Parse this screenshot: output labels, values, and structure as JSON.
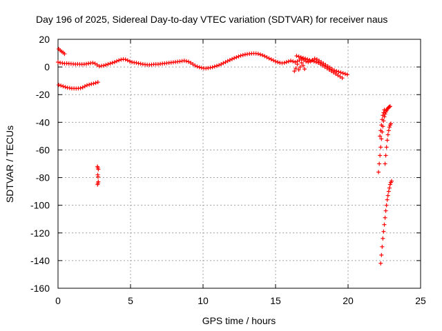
{
  "chart_data": {
    "type": "scatter",
    "title": "Day 196 of 2025, Sidereal Day-to-day VTEC variation (SDTVAR) for receiver naus",
    "xlabel": "GPS time / hours",
    "ylabel": "SDTVAR / TECUs",
    "xlim": [
      0,
      25
    ],
    "ylim": [
      -160,
      20
    ],
    "xticks": [
      0,
      5,
      10,
      15,
      20,
      25
    ],
    "yticks": [
      -160,
      -140,
      -120,
      -100,
      -80,
      -60,
      -40,
      -20,
      0,
      20
    ],
    "grid": true,
    "marker": "plus",
    "color": "#ff0000",
    "series": [
      {
        "x": [
          0.0,
          0.15,
          0.3,
          0.45,
          0.6,
          0.75,
          0.9,
          1.05,
          1.2,
          1.35,
          1.5,
          1.65,
          1.8,
          1.95,
          2.1,
          2.25,
          2.4,
          2.55,
          2.7,
          2.85,
          3.0,
          3.15,
          3.3,
          3.45,
          3.6,
          3.75,
          3.9,
          4.05,
          4.2,
          4.35,
          4.5,
          4.65,
          4.8,
          4.95,
          5.1,
          5.25,
          5.4,
          5.55,
          5.7,
          5.85,
          6.0,
          6.15,
          6.3,
          6.45,
          6.6,
          6.75,
          6.9,
          7.05,
          7.2,
          7.35,
          7.5,
          7.65,
          7.8,
          7.95,
          8.1,
          8.25,
          8.4,
          8.55,
          8.7,
          8.85,
          9.0,
          9.15,
          9.3,
          9.45,
          9.6,
          9.75,
          9.9,
          10.05,
          10.2,
          10.35,
          10.5,
          10.65,
          10.8,
          10.95,
          11.1,
          11.25,
          11.4,
          11.55,
          11.7,
          11.85,
          12.0,
          12.15,
          12.3,
          12.45,
          12.6,
          12.75,
          12.9,
          13.05,
          13.2,
          13.35,
          13.5,
          13.65,
          13.8,
          13.95,
          14.1,
          14.25,
          14.4,
          14.55,
          14.7,
          14.85,
          15.0,
          15.15,
          15.3,
          15.45,
          15.6,
          15.75,
          15.9,
          16.05,
          16.2,
          16.35,
          16.5,
          16.65,
          16.8,
          16.95,
          17.1,
          17.25,
          17.4,
          17.55,
          17.7,
          17.85,
          18.0,
          18.15,
          18.3,
          18.45,
          18.6,
          18.75,
          18.9,
          19.05,
          19.2,
          19.35,
          19.5,
          19.65,
          19.8,
          19.95,
          0.05,
          0.15,
          0.25,
          0.35,
          0.45,
          0.05,
          0.2,
          0.35,
          0.5,
          0.65,
          0.8,
          0.95,
          1.1,
          1.25,
          1.4,
          1.55,
          1.7,
          1.85,
          2.0,
          2.15,
          2.3,
          2.45,
          2.6,
          2.75,
          2.72,
          2.75,
          2.78,
          2.74,
          2.76,
          2.78,
          2.75,
          2.73,
          16.3,
          16.4,
          16.5,
          16.6,
          16.7,
          16.8,
          16.9,
          17.0,
          16.45,
          16.6,
          16.75,
          16.9,
          17.05,
          17.2,
          17.35,
          17.5,
          17.65,
          17.8,
          17.95,
          18.1,
          18.25,
          18.4,
          18.55,
          18.7,
          18.85,
          19.0,
          19.15,
          19.3,
          19.45,
          19.6,
          22.1,
          22.15,
          22.2,
          22.25,
          22.3,
          22.35,
          22.4,
          22.45,
          22.5,
          22.55,
          22.6,
          22.65,
          22.7,
          22.75,
          22.8,
          22.85,
          22.9,
          22.2,
          22.25,
          22.3,
          22.35,
          22.4,
          22.45,
          22.5,
          22.55,
          22.6,
          22.65,
          22.7,
          22.75,
          22.8,
          22.85,
          22.9,
          22.95,
          22.25,
          22.3,
          22.35,
          22.4,
          22.45,
          22.5,
          22.55,
          22.6,
          22.65,
          22.7,
          22.75,
          22.8,
          22.85,
          22.9,
          22.95,
          23.0
        ],
        "y": [
          3.5,
          3.0,
          2.8,
          2.5,
          2.6,
          2.4,
          2.3,
          2.2,
          2.0,
          2.1,
          2.0,
          1.9,
          2.0,
          2.2,
          2.5,
          2.8,
          3.0,
          2.5,
          1.5,
          0.5,
          0.8,
          1.0,
          1.5,
          2.0,
          2.5,
          3.0,
          3.5,
          4.2,
          4.8,
          5.3,
          5.6,
          5.4,
          4.8,
          4.0,
          3.5,
          3.2,
          3.0,
          2.6,
          2.3,
          2.0,
          1.8,
          1.6,
          1.5,
          1.7,
          1.9,
          2.0,
          2.0,
          2.2,
          2.4,
          2.6,
          2.8,
          3.0,
          3.2,
          3.4,
          3.6,
          3.8,
          4.0,
          4.3,
          4.5,
          4.2,
          3.8,
          3.0,
          2.0,
          1.0,
          0.3,
          -0.2,
          -0.6,
          -0.9,
          -1.0,
          -0.8,
          -0.5,
          -0.2,
          0.3,
          0.8,
          1.3,
          2.0,
          2.8,
          3.5,
          4.3,
          5.0,
          5.7,
          6.4,
          7.0,
          7.6,
          8.2,
          8.6,
          9.0,
          9.3,
          9.5,
          9.7,
          9.8,
          9.7,
          9.5,
          9.0,
          8.5,
          7.8,
          7.0,
          6.2,
          5.5,
          4.8,
          4.0,
          3.5,
          3.0,
          2.8,
          3.0,
          3.5,
          4.0,
          4.5,
          4.0,
          3.5,
          4.0,
          5.0,
          6.0,
          5.0,
          4.0,
          3.5,
          4.0,
          5.0,
          6.0,
          5.5,
          4.5,
          3.5,
          2.5,
          1.5,
          0.5,
          -0.5,
          -1.5,
          -2.5,
          -3.0,
          -3.5,
          -4.0,
          -4.5,
          -5.0,
          -5.5,
          13.0,
          12.0,
          11.2,
          10.4,
          9.5,
          -13.0,
          -13.5,
          -14.0,
          -14.5,
          -15.0,
          -15.2,
          -15.5,
          -15.5,
          -15.6,
          -15.5,
          -15.3,
          -14.8,
          -14.0,
          -13.2,
          -12.8,
          -12.3,
          -12.0,
          -11.5,
          -11.0,
          -72.0,
          -73.0,
          -74.0,
          -78.0,
          -79.5,
          -83.0,
          -84.0,
          -85.0,
          -3.0,
          -1.0,
          2.0,
          -2.0,
          0.0,
          3.0,
          1.0,
          -1.5,
          8.0,
          7.5,
          7.0,
          6.5,
          6.0,
          5.5,
          5.0,
          4.5,
          4.0,
          3.5,
          3.0,
          2.0,
          1.0,
          0.0,
          -1.0,
          -2.0,
          -3.0,
          -4.0,
          -5.0,
          -6.0,
          -7.0,
          -8.0,
          -76.0,
          -70.0,
          -64.0,
          -58.0,
          -52.0,
          -47.0,
          -43.0,
          -39.0,
          -36.0,
          -34.0,
          -32.5,
          -31.5,
          -30.5,
          -29.8,
          -29.2,
          -28.8,
          -28.5,
          -50.0,
          -46.0,
          -42.0,
          -38.0,
          -35.0,
          -33.0,
          -31.0,
          -70.0,
          -64.0,
          -58.0,
          -53.0,
          -49.0,
          -46.0,
          -43.5,
          -42.0,
          -41.0,
          -142.0,
          -136.0,
          -130.0,
          -124.0,
          -119.0,
          -114.0,
          -109.0,
          -104.0,
          -100.0,
          -96.0,
          -93.0,
          -90.0,
          -87.5,
          -85.0,
          -83.5,
          -82.5
        ]
      }
    ]
  }
}
